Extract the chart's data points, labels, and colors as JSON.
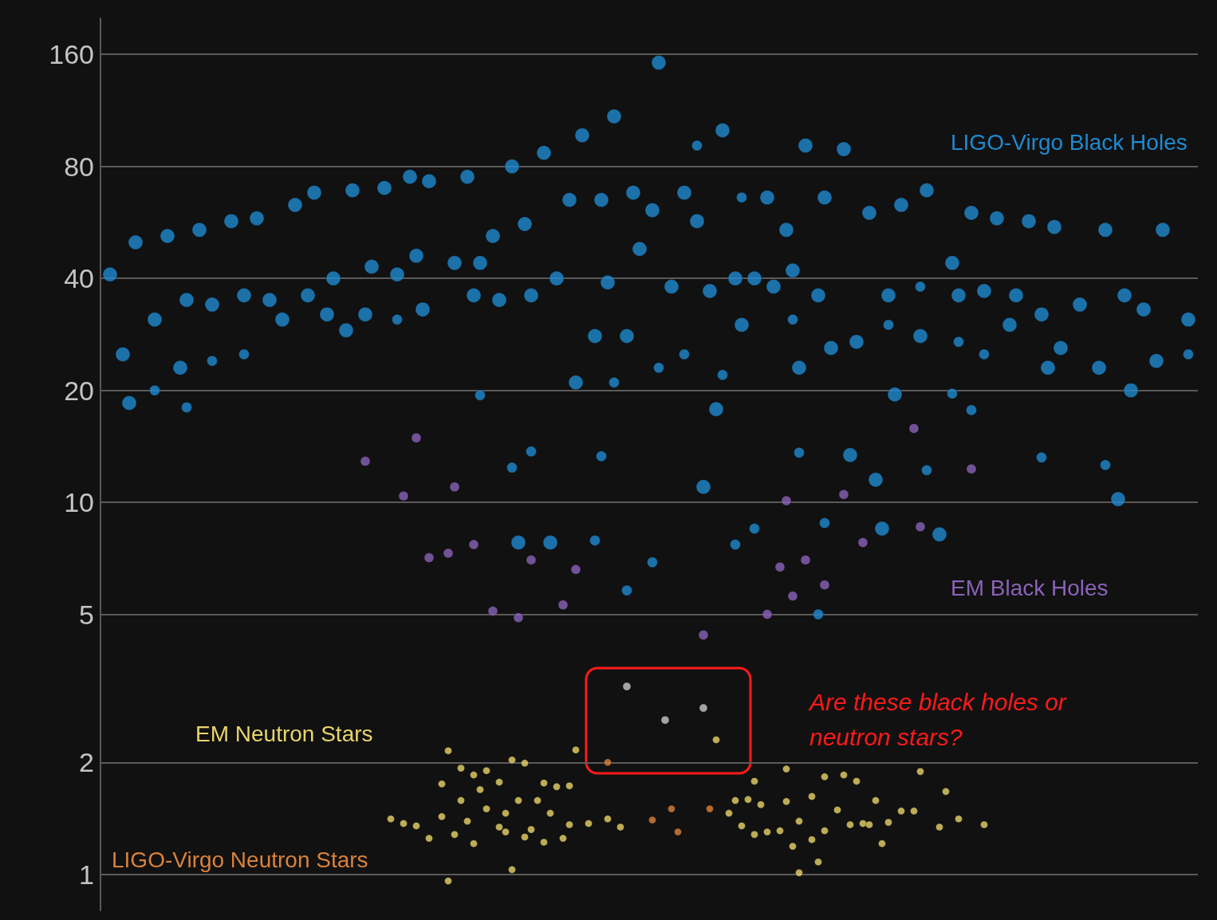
{
  "chart_data": {
    "type": "scatter",
    "log": true,
    "grid": "y",
    "marker": "circle",
    "tick_labels": "y",
    "ylim": [
      0.8,
      200
    ],
    "yticks": [
      1,
      2,
      5,
      10,
      20,
      40,
      80,
      160
    ],
    "annotations": [
      "Are these black holes or neutron stars?"
    ],
    "categories": [
      null,
      null,
      null,
      null,
      null,
      null,
      null,
      null,
      null,
      null,
      null,
      null,
      null,
      null,
      null,
      null,
      null,
      null,
      null,
      null,
      null,
      null,
      null,
      null,
      null,
      null,
      null,
      null,
      null,
      null,
      null,
      null,
      null,
      null,
      null,
      null,
      null,
      null,
      null,
      null,
      null,
      null,
      null,
      null,
      null,
      null,
      null,
      null,
      null,
      null,
      null,
      null,
      null,
      null,
      null,
      null,
      null,
      null,
      null,
      null,
      null,
      null,
      null,
      null,
      null,
      null,
      null,
      null,
      null,
      null,
      null,
      null,
      null,
      null,
      null,
      null,
      null,
      null,
      null,
      null,
      null,
      null,
      null,
      null,
      null,
      null,
      null,
      null,
      null,
      null,
      null,
      null,
      null,
      null,
      null,
      null,
      null,
      null,
      null,
      null,
      null,
      null,
      null,
      null,
      null,
      null,
      null,
      null,
      null,
      null,
      null,
      null,
      null,
      null,
      null,
      null,
      null,
      null,
      null,
      null,
      null,
      null,
      null,
      null,
      null,
      null,
      null,
      null,
      null,
      null,
      null,
      null,
      null,
      null,
      null,
      null,
      null,
      null,
      null,
      null,
      null,
      null,
      null,
      null,
      null,
      null,
      null,
      null,
      null,
      null,
      null,
      null,
      null,
      null,
      null,
      null,
      null,
      null,
      null,
      null,
      null,
      null,
      null,
      null,
      null,
      null,
      null,
      null,
      null,
      null,
      null,
      null
    ],
    "series": [
      {
        "name": "LIGO-Virgo Black Holes",
        "color": "#1f8ad0",
        "values": [
          null,
          41,
          null,
          25,
          18.5,
          50,
          null,
          null,
          31,
          null,
          52,
          null,
          23,
          35,
          null,
          54,
          null,
          34,
          null,
          null,
          57,
          null,
          36,
          null,
          58,
          null,
          35,
          null,
          31,
          null,
          63,
          null,
          36,
          68,
          null,
          32,
          40,
          null,
          29,
          69,
          null,
          32,
          43,
          null,
          70,
          null,
          41,
          null,
          75,
          46,
          33,
          73,
          null,
          null,
          null,
          44,
          null,
          75,
          36,
          44,
          null,
          52,
          35,
          null,
          80,
          7.8,
          56,
          36,
          null,
          87,
          7.8,
          40,
          null,
          65,
          21,
          97,
          null,
          28,
          65,
          39,
          109,
          null,
          28,
          68,
          48,
          null,
          61,
          152,
          null,
          38,
          null,
          68,
          null,
          57,
          11,
          37,
          17.8,
          100,
          null,
          40,
          30,
          null,
          40,
          null,
          66,
          38,
          null,
          54,
          42,
          23,
          91,
          null,
          36,
          66,
          26,
          null,
          89,
          13.4,
          27,
          null,
          60,
          11.5,
          8.5,
          36,
          19.5,
          63,
          null,
          null,
          28,
          69,
          null,
          8.2,
          null,
          44,
          36,
          null,
          60,
          null,
          37,
          null,
          58,
          null,
          30,
          36,
          null,
          57,
          null,
          32,
          23,
          55,
          26,
          null,
          null,
          34,
          null,
          null,
          23,
          54,
          null,
          10.2,
          36,
          20,
          null,
          33,
          null,
          24,
          54,
          null,
          null,
          null,
          31,
          null
        ]
      },
      {
        "color": "#1f8ad0",
        "values": [
          null,
          null,
          null,
          null,
          null,
          null,
          null,
          null,
          20,
          null,
          null,
          null,
          null,
          18,
          null,
          null,
          null,
          24,
          null,
          null,
          null,
          null,
          25,
          null,
          null,
          null,
          null,
          null,
          null,
          null,
          null,
          null,
          null,
          null,
          null,
          null,
          null,
          null,
          null,
          null,
          null,
          null,
          null,
          null,
          null,
          null,
          31,
          null,
          null,
          null,
          null,
          null,
          null,
          null,
          null,
          null,
          null,
          null,
          null,
          19.4,
          null,
          null,
          null,
          null,
          12.4,
          null,
          null,
          13.7,
          null,
          null,
          null,
          null,
          null,
          null,
          null,
          null,
          null,
          7.9,
          13.3,
          null,
          21,
          null,
          5.8,
          null,
          null,
          null,
          6.9,
          23,
          null,
          null,
          null,
          25,
          null,
          91,
          null,
          null,
          null,
          22,
          null,
          7.7,
          66,
          null,
          8.5,
          null,
          null,
          null,
          null,
          null,
          31,
          13.6,
          null,
          null,
          5,
          8.8,
          null,
          null,
          null,
          null,
          null,
          null,
          null,
          null,
          null,
          30,
          null,
          null,
          null,
          null,
          38,
          12.2,
          null,
          null,
          null,
          19.6,
          27,
          null,
          17.7,
          null,
          25,
          null,
          null,
          null,
          null,
          null,
          null,
          null,
          null,
          13.2,
          null,
          null,
          null,
          null,
          null,
          null,
          null,
          null,
          null,
          12.6,
          null,
          null,
          null,
          null,
          null,
          null,
          null,
          null,
          null,
          null,
          null,
          null,
          25,
          null
        ]
      },
      {
        "name": "EM Black Holes",
        "color": "#8a63b8",
        "values": [
          null,
          null,
          null,
          null,
          null,
          null,
          null,
          null,
          null,
          null,
          null,
          null,
          null,
          null,
          null,
          null,
          null,
          null,
          null,
          null,
          null,
          null,
          null,
          null,
          null,
          null,
          null,
          null,
          null,
          null,
          null,
          null,
          null,
          null,
          null,
          null,
          null,
          null,
          null,
          null,
          null,
          12.9,
          null,
          null,
          null,
          null,
          null,
          10.4,
          null,
          14.9,
          null,
          7.1,
          null,
          null,
          7.3,
          11,
          null,
          null,
          7.7,
          null,
          null,
          5.1,
          null,
          null,
          null,
          4.9,
          null,
          7,
          null,
          null,
          null,
          null,
          5.3,
          null,
          6.6,
          null,
          null,
          null,
          null,
          null,
          null,
          null,
          null,
          null,
          null,
          null,
          null,
          null,
          null,
          null,
          null,
          null,
          null,
          null,
          4.4,
          null,
          null,
          null,
          null,
          null,
          null,
          null,
          null,
          null,
          5,
          null,
          6.7,
          10.1,
          5.6,
          null,
          7,
          null,
          null,
          6,
          null,
          null,
          10.5,
          null,
          null,
          7.8,
          null,
          null,
          null,
          null,
          null,
          null,
          null,
          15.8,
          8.6,
          null,
          null,
          null,
          null,
          null,
          null,
          null,
          12.3,
          null,
          null,
          null,
          null,
          null,
          null,
          null,
          null,
          null,
          null,
          null,
          null,
          null,
          null,
          null,
          null,
          null,
          null,
          null,
          null,
          null,
          null,
          null,
          null,
          null,
          null,
          null,
          null,
          null,
          null,
          null,
          null,
          null,
          null,
          null
        ]
      },
      {
        "color": "#c8c8c8",
        "values": [
          null,
          null,
          null,
          null,
          null,
          null,
          null,
          null,
          null,
          null,
          null,
          null,
          null,
          null,
          null,
          null,
          null,
          null,
          null,
          null,
          null,
          null,
          null,
          null,
          null,
          null,
          null,
          null,
          null,
          null,
          null,
          null,
          null,
          null,
          null,
          null,
          null,
          null,
          null,
          null,
          null,
          null,
          null,
          null,
          null,
          null,
          null,
          null,
          null,
          null,
          null,
          null,
          null,
          null,
          null,
          null,
          null,
          null,
          null,
          null,
          null,
          null,
          null,
          null,
          null,
          null,
          null,
          null,
          null,
          null,
          null,
          null,
          null,
          null,
          null,
          null,
          null,
          null,
          null,
          null,
          null,
          null,
          3.2,
          null,
          null,
          null,
          null,
          null,
          2.6,
          null,
          null,
          null,
          null,
          null,
          2.8,
          null,
          null,
          null,
          null,
          null,
          null,
          null,
          null,
          null,
          null,
          null,
          null,
          null,
          null,
          null,
          null,
          null,
          null,
          null,
          null,
          null,
          null,
          null,
          null,
          null,
          null,
          null,
          null,
          null,
          null,
          null,
          null,
          null,
          null,
          null,
          null,
          null,
          null,
          null,
          null,
          null,
          null,
          null,
          null,
          null,
          null,
          null,
          null,
          null,
          null,
          null,
          null,
          null,
          null,
          null,
          null,
          null,
          null,
          null,
          null,
          null,
          null,
          null,
          null,
          null,
          null,
          null,
          null,
          null,
          null,
          null,
          null,
          null,
          null,
          null,
          null,
          null
        ]
      },
      {
        "name": "LIGO-Virgo Neutron Stars",
        "color": "#d9823c",
        "values": [
          null,
          null,
          null,
          null,
          null,
          null,
          null,
          null,
          null,
          null,
          null,
          null,
          null,
          null,
          null,
          null,
          null,
          null,
          null,
          null,
          null,
          null,
          null,
          null,
          null,
          null,
          null,
          null,
          null,
          null,
          null,
          null,
          null,
          null,
          null,
          null,
          null,
          null,
          null,
          null,
          null,
          null,
          null,
          null,
          null,
          null,
          null,
          null,
          null,
          null,
          null,
          null,
          null,
          null,
          null,
          null,
          null,
          null,
          null,
          null,
          null,
          null,
          null,
          null,
          null,
          null,
          null,
          null,
          null,
          null,
          null,
          null,
          null,
          null,
          null,
          null,
          null,
          null,
          null,
          2.0,
          null,
          null,
          null,
          null,
          null,
          null,
          1.4,
          null,
          null,
          1.5,
          1.3,
          null,
          null,
          null,
          null,
          1.5,
          null,
          null,
          null,
          null,
          null,
          null,
          null,
          null,
          null,
          null,
          null,
          null,
          null,
          null,
          null,
          null,
          null,
          null,
          null,
          null,
          null,
          null,
          null,
          null,
          null,
          null,
          null,
          null,
          null,
          null,
          null,
          null,
          null,
          null,
          null,
          null,
          null,
          null,
          null,
          null,
          null,
          null,
          null,
          null,
          null,
          null,
          null,
          null,
          null,
          null,
          null,
          null,
          null,
          null,
          null,
          null,
          null,
          null,
          null,
          null,
          null,
          null,
          null,
          null,
          null,
          null,
          null,
          null,
          null,
          null,
          null,
          null,
          null,
          null,
          null,
          null
        ]
      },
      {
        "name": "EM Neutron Stars",
        "color": "#e8d46a",
        "values": [
          null,
          null,
          null,
          null,
          null,
          null,
          null,
          null,
          null,
          null,
          null,
          null,
          null,
          null,
          null,
          null,
          null,
          null,
          null,
          null,
          null,
          null,
          null,
          null,
          null,
          null,
          null,
          null,
          null,
          null,
          null,
          null,
          null,
          null,
          null,
          null,
          null,
          null,
          null,
          null,
          null,
          null,
          null,
          null,
          null,
          1.41,
          null,
          1.37,
          null,
          1.35,
          null,
          1.25,
          null,
          1.75,
          2.15,
          null,
          1.93,
          1.39,
          1.85,
          1.69,
          1.9,
          null,
          1.77,
          1.46,
          2.03,
          1.58,
          1.99,
          1.32,
          1.58,
          1.76,
          1.46,
          1.72,
          1.25,
          1.73,
          2.16,
          null,
          1.37,
          null,
          null,
          1.41,
          null,
          1.34,
          null,
          null,
          null,
          null,
          null,
          null,
          null,
          null,
          null,
          null,
          null,
          null,
          null,
          null,
          2.3,
          null,
          1.46,
          1.58,
          1.35,
          1.59,
          1.78,
          1.54,
          1.3,
          null,
          1.31,
          1.92,
          1.19,
          1.39,
          null,
          1.62,
          1.08,
          1.83,
          null,
          1.49,
          1.85,
          1.36,
          1.78,
          1.37,
          1.36,
          1.58,
          1.21,
          1.38,
          null,
          1.48,
          null,
          1.48,
          1.89,
          null,
          null,
          1.34,
          1.67,
          null,
          1.41,
          null,
          null,
          null,
          1.36,
          null,
          null,
          null,
          null,
          null,
          null,
          null,
          null,
          null,
          null,
          null,
          null,
          null,
          null,
          null,
          null,
          null,
          null,
          null,
          null,
          null,
          null,
          null,
          null,
          null,
          null,
          null,
          null,
          null,
          null,
          null,
          null,
          null
        ]
      },
      {
        "color": "#e8d46a",
        "values": [
          null,
          null,
          null,
          null,
          null,
          null,
          null,
          null,
          null,
          null,
          null,
          null,
          null,
          null,
          null,
          null,
          null,
          null,
          null,
          null,
          null,
          null,
          null,
          null,
          null,
          null,
          null,
          null,
          null,
          null,
          null,
          null,
          null,
          null,
          null,
          null,
          null,
          null,
          null,
          null,
          null,
          null,
          null,
          null,
          null,
          null,
          null,
          null,
          null,
          null,
          null,
          null,
          null,
          1.43,
          0.96,
          1.28,
          1.58,
          null,
          1.21,
          null,
          1.5,
          null,
          1.34,
          1.3,
          1.03,
          null,
          1.26,
          null,
          null,
          1.22,
          null,
          null,
          null,
          1.36,
          null,
          null,
          null,
          null,
          null,
          null,
          null,
          null,
          null,
          null,
          null,
          null,
          null,
          null,
          null,
          null,
          null,
          null,
          null,
          null,
          null,
          null,
          null,
          null,
          null,
          null,
          null,
          null,
          1.28,
          null,
          null,
          null,
          null,
          1.57,
          null,
          1.01,
          null,
          1.24,
          null,
          1.31,
          null,
          null,
          null,
          null,
          null,
          null,
          null,
          null,
          null,
          null,
          null,
          null,
          null,
          null,
          null,
          null,
          null,
          null,
          null,
          null,
          null,
          null,
          null,
          null,
          null,
          null,
          null,
          null,
          null,
          null,
          null,
          null,
          null,
          null,
          null,
          null,
          null,
          null,
          null,
          null,
          null,
          null,
          null,
          null,
          null,
          null,
          null,
          null,
          null,
          null,
          null,
          null,
          null,
          null,
          null,
          null,
          null,
          null
        ]
      }
    ]
  }
}
